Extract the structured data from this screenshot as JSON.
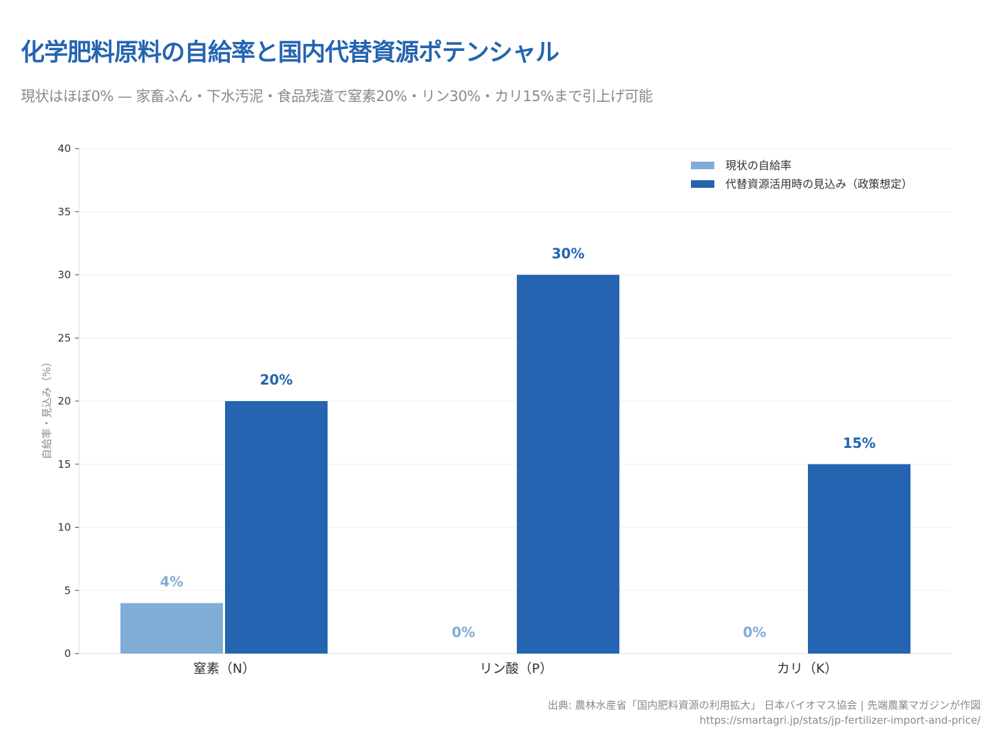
{
  "title": "化学肥料原料の自給率と国内代替資源ポテンシャル",
  "subtitle": "現状はほぼ0% — 家畜ふん・下水汚泥・食品残渣で窒素20%・リン30%・カリ15%まで引上げ可能",
  "source": "出典: 農林水産省「国内肥料資源の利用拡大」 日本バイオマス協会 | 先端農業マガジンが作図",
  "url": "https://smartagri.jp/stats/jp-fertilizer-import-and-price/",
  "chart_data": {
    "type": "bar",
    "categories": [
      "窒素（N）",
      "リン酸（P）",
      "カリ（K）"
    ],
    "series": [
      {
        "name": "現状の自給率",
        "values": [
          4,
          0,
          0
        ],
        "labels": [
          "4%",
          "0%",
          "0%"
        ],
        "color": "#7fadd6"
      },
      {
        "name": "代替資源活用時の見込み（政策想定）",
        "values": [
          20,
          30,
          15
        ],
        "labels": [
          "20%",
          "30%",
          "15%"
        ],
        "color": "#2464b0"
      }
    ],
    "ylabel": "自給率・見込み（%）",
    "ylim": [
      0,
      40
    ],
    "yticks": [
      "0",
      "5",
      "10",
      "15",
      "20",
      "25",
      "30",
      "35",
      "40"
    ],
    "grid": true,
    "legend": "top-right"
  }
}
